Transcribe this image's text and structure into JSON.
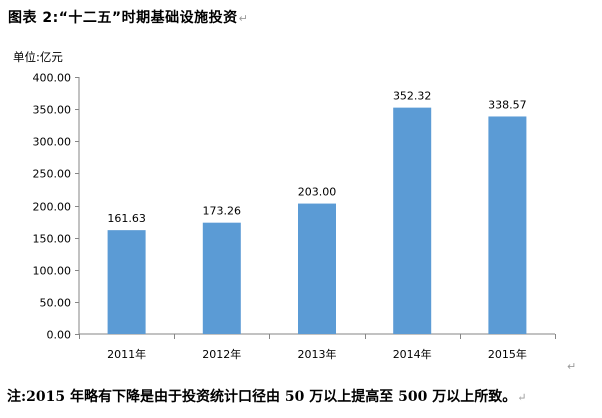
{
  "figure": {
    "title": "图表 2:“十二五”时期基础设施投资",
    "paragraph_mark": "↵"
  },
  "chart_data": {
    "type": "bar",
    "unit_label": "单位:亿元",
    "categories": [
      "2011年",
      "2012年",
      "2013年",
      "2014年",
      "2015年"
    ],
    "values": [
      161.63,
      173.26,
      203.0,
      352.32,
      338.57
    ],
    "data_labels": [
      "161.63",
      "173.26",
      "203.00",
      "352.32",
      "338.57"
    ],
    "ylim": [
      0,
      400
    ],
    "yticks": [
      "0.00",
      "50.00",
      "100.00",
      "150.00",
      "200.00",
      "250.00",
      "300.00",
      "350.00",
      "400.00"
    ],
    "grid": false,
    "legend": "none",
    "bar_color": "#5b9bd5",
    "axis_color": "#868686"
  },
  "note": {
    "text": "注:2015 年略有下降是由于投资统计口径由 50 万以上提高至 500 万以上所致。",
    "paragraph_mark": "↵"
  }
}
